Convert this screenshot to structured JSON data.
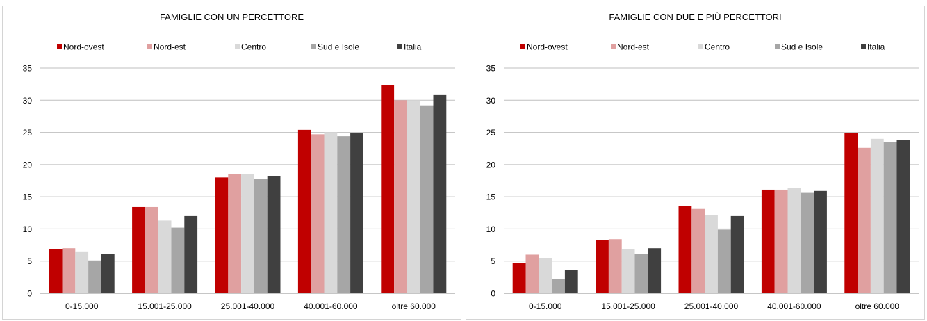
{
  "chart_data": [
    {
      "type": "bar",
      "title": "FAMIGLIE CON UN PERCETTORE",
      "categories": [
        "0-15.000",
        "15.001-25.000",
        "25.001-40.000",
        "40.001-60.000",
        "oltre 60.000"
      ],
      "ylim": [
        0,
        35
      ],
      "yticks": [
        0,
        5,
        10,
        15,
        20,
        25,
        30,
        35
      ],
      "grid": true,
      "legend_position": "top",
      "series": [
        {
          "name": "Nord-ovest",
          "color": "#c00000",
          "values": [
            6.9,
            13.4,
            18.0,
            25.4,
            32.3
          ]
        },
        {
          "name": "Nord-est",
          "color": "#e0a0a0",
          "values": [
            7.0,
            13.4,
            18.5,
            24.7,
            30.0
          ]
        },
        {
          "name": "Centro",
          "color": "#d9d9d9",
          "values": [
            6.5,
            11.3,
            18.5,
            25.0,
            30.0
          ]
        },
        {
          "name": "Sud e Isole",
          "color": "#a6a6a6",
          "values": [
            5.1,
            10.2,
            17.8,
            24.4,
            29.2
          ]
        },
        {
          "name": "Italia",
          "color": "#404040",
          "values": [
            6.1,
            12.0,
            18.2,
            24.9,
            30.8
          ]
        }
      ]
    },
    {
      "type": "bar",
      "title": "FAMIGLIE CON DUE E PIÙ PERCETTORI",
      "categories": [
        "0-15.000",
        "15.001-25.000",
        "25.001-40.000",
        "40.001-60.000",
        "oltre 60.000"
      ],
      "ylim": [
        0,
        35
      ],
      "yticks": [
        0,
        5,
        10,
        15,
        20,
        25,
        30,
        35
      ],
      "grid": true,
      "legend_position": "top",
      "series": [
        {
          "name": "Nord-ovest",
          "color": "#c00000",
          "values": [
            4.7,
            8.3,
            13.6,
            16.1,
            24.9
          ]
        },
        {
          "name": "Nord-est",
          "color": "#e0a0a0",
          "values": [
            6.0,
            8.4,
            13.1,
            16.1,
            22.6
          ]
        },
        {
          "name": "Centro",
          "color": "#d9d9d9",
          "values": [
            5.4,
            6.8,
            12.2,
            16.4,
            24.0
          ]
        },
        {
          "name": "Sud e Isole",
          "color": "#a6a6a6",
          "values": [
            2.2,
            6.1,
            9.9,
            15.6,
            23.5
          ]
        },
        {
          "name": "Italia",
          "color": "#404040",
          "values": [
            3.6,
            7.0,
            12.0,
            15.9,
            23.8
          ]
        }
      ]
    }
  ]
}
